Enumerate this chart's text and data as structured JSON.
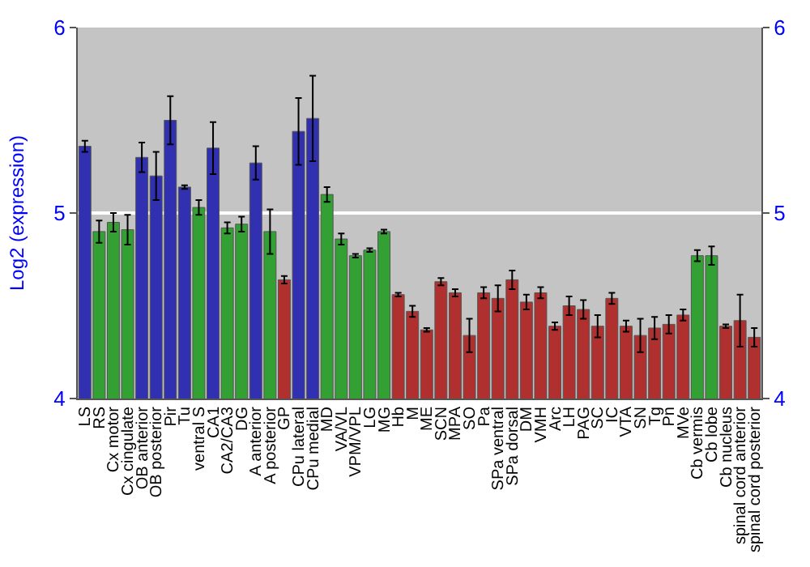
{
  "chart_data": {
    "type": "bar",
    "ylabel": "Log2 (expression)",
    "categories": [
      "LS",
      "RS",
      "Cx motor",
      "Cx cingulate",
      "OB anterior",
      "OB posterior",
      "Pir",
      "Tu",
      "ventral S",
      "CA1",
      "CA2/CA3",
      "DG",
      "A anterior",
      "A posterior",
      "GP",
      "CPu lateral",
      "CPu medial",
      "MD",
      "VA/VL",
      "VPM/VPL",
      "LG",
      "MG",
      "Hb",
      "M",
      "ME",
      "SCN",
      "MPA",
      "SO",
      "Pa",
      "SPa ventral",
      "SPa dorsal",
      "DM",
      "VMH",
      "Arc",
      "LH",
      "PAG",
      "SC",
      "IC",
      "VTA",
      "SN",
      "Tg",
      "Pn",
      "MVe",
      "Cb vermis",
      "Cb lobe",
      "Cb nucleus",
      "spinal cord anterior",
      "spinal cord posterior"
    ],
    "values": [
      5.36,
      4.9,
      4.95,
      4.91,
      5.3,
      5.2,
      5.5,
      5.14,
      5.03,
      5.35,
      4.92,
      4.94,
      5.27,
      4.9,
      4.64,
      5.44,
      5.51,
      5.1,
      4.86,
      4.77,
      4.8,
      4.9,
      4.56,
      4.47,
      4.37,
      4.63,
      4.57,
      4.34,
      4.57,
      4.54,
      4.64,
      4.52,
      4.57,
      4.39,
      4.5,
      4.48,
      4.39,
      4.54,
      4.39,
      4.34,
      4.38,
      4.4,
      4.45,
      4.77,
      4.77,
      4.39,
      4.42,
      4.33
    ],
    "errors": [
      0.03,
      0.06,
      0.05,
      0.08,
      0.08,
      0.13,
      0.13,
      0.01,
      0.04,
      0.14,
      0.03,
      0.04,
      0.09,
      0.12,
      0.02,
      0.18,
      0.23,
      0.04,
      0.03,
      0.01,
      0.01,
      0.01,
      0.01,
      0.03,
      0.01,
      0.02,
      0.02,
      0.09,
      0.03,
      0.07,
      0.05,
      0.04,
      0.03,
      0.02,
      0.05,
      0.05,
      0.06,
      0.03,
      0.03,
      0.09,
      0.06,
      0.05,
      0.03,
      0.03,
      0.05,
      0.01,
      0.14,
      0.05
    ],
    "colors": [
      "#3030b0",
      "#33a033",
      "#33a033",
      "#33a033",
      "#3030b0",
      "#3030b0",
      "#3030b0",
      "#3030b0",
      "#33a033",
      "#3030b0",
      "#33a033",
      "#33a033",
      "#3030b0",
      "#33a033",
      "#b03030",
      "#3030b0",
      "#3030b0",
      "#33a033",
      "#33a033",
      "#33a033",
      "#33a033",
      "#33a033",
      "#b03030",
      "#b03030",
      "#b03030",
      "#b03030",
      "#b03030",
      "#b03030",
      "#b03030",
      "#b03030",
      "#b03030",
      "#b03030",
      "#b03030",
      "#b03030",
      "#b03030",
      "#b03030",
      "#b03030",
      "#b03030",
      "#b03030",
      "#b03030",
      "#b03030",
      "#b03030",
      "#b03030",
      "#33a033",
      "#33a033",
      "#b03030",
      "#b03030",
      "#b03030"
    ],
    "ylim": [
      4,
      6
    ],
    "yticks": [
      4,
      5,
      6
    ],
    "y2lim": [
      4,
      6
    ],
    "y2ticks": [
      4,
      5,
      6
    ],
    "grid": "y"
  }
}
